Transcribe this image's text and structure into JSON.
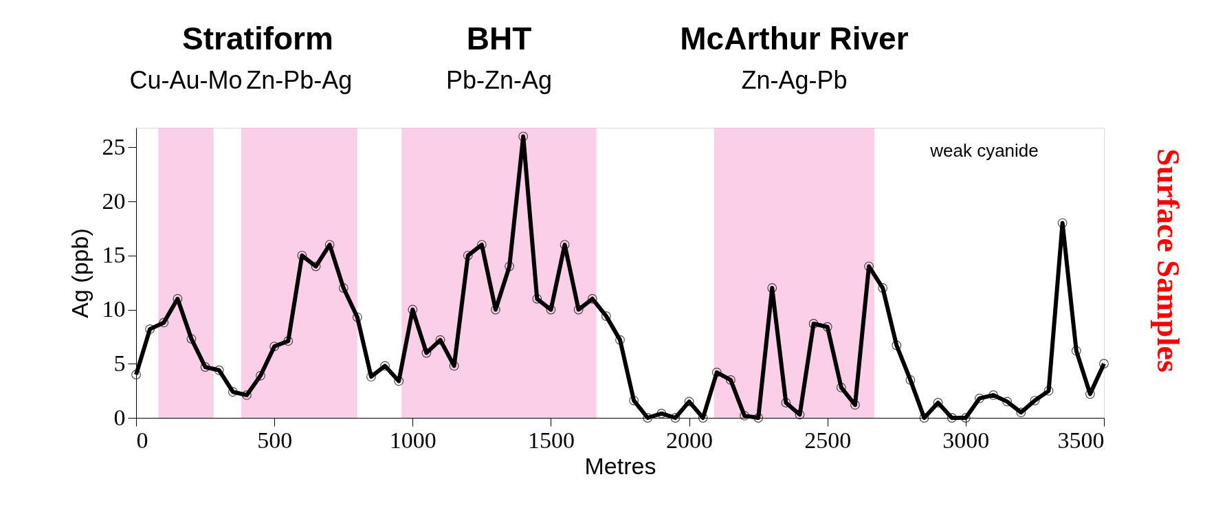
{
  "chart_data": {
    "type": "line",
    "xlabel": "Metres",
    "ylabel": "Ag (ppb)",
    "x": [
      0,
      50,
      100,
      150,
      200,
      250,
      300,
      350,
      400,
      450,
      500,
      550,
      600,
      650,
      700,
      750,
      800,
      850,
      900,
      950,
      1000,
      1050,
      1100,
      1150,
      1200,
      1250,
      1300,
      1350,
      1400,
      1450,
      1500,
      1550,
      1600,
      1650,
      1700,
      1750,
      1800,
      1850,
      1900,
      1950,
      2000,
      2050,
      2100,
      2150,
      2200,
      2250,
      2300,
      2350,
      2400,
      2450,
      2500,
      2550,
      2600,
      2650,
      2700,
      2750,
      2800,
      2850,
      2900,
      2950,
      3000,
      3050,
      3100,
      3150,
      3200,
      3250,
      3300,
      3350,
      3400,
      3450,
      3500
    ],
    "series": [
      {
        "color": "#000000",
        "values": [
          4,
          8.2,
          8.8,
          11,
          7.3,
          4.7,
          4.4,
          2.4,
          2.1,
          3.9,
          6.6,
          7.1,
          15,
          14,
          16,
          12,
          9.3,
          3.8,
          4.8,
          3.4,
          10,
          6,
          7.2,
          4.8,
          15,
          16,
          10,
          14,
          26,
          11,
          10,
          16,
          10,
          11,
          9.4,
          7.2,
          1.6,
          0,
          0.4,
          0,
          1.5,
          0,
          4.2,
          3.5,
          0.2,
          0,
          12,
          1.4,
          0.3,
          8.7,
          8.4,
          2.8,
          1.2,
          14,
          12,
          6.7,
          3.5,
          0,
          1.4,
          0,
          0,
          1.8,
          2.1,
          1.5,
          0.5,
          1.6,
          2.5,
          18,
          6.2,
          2.2,
          5
        ]
      }
    ],
    "marker": "circle",
    "line_style": "solid",
    "xlim": [
      0,
      3500
    ],
    "xticks": [
      0,
      500,
      1000,
      1500,
      2000,
      2500,
      3000,
      3500
    ],
    "ylim": [
      0,
      26.8
    ],
    "yticks": [
      0,
      5,
      10,
      15,
      20,
      25
    ],
    "bands": [
      {
        "axis": "x",
        "from": 80,
        "to": 280,
        "label": "Cu-Au-Mo",
        "color": "#f7a8d3"
      },
      {
        "axis": "x",
        "from": 380,
        "to": 800,
        "label": "Zn-Pb-Ag",
        "color": "#f7a8d3"
      },
      {
        "axis": "x",
        "from": 960,
        "to": 1665,
        "label": "Pb-Zn-Ag",
        "color": "#f7a8d3"
      },
      {
        "axis": "x",
        "from": 2090,
        "to": 2670,
        "label": "Zn-Ag-Pb",
        "color": "#f7a8d3"
      }
    ],
    "annotations": [
      "Stratiform",
      "BHT",
      "McArthur River",
      "weak cyanide",
      "Surface Samples"
    ],
    "grid": false
  }
}
